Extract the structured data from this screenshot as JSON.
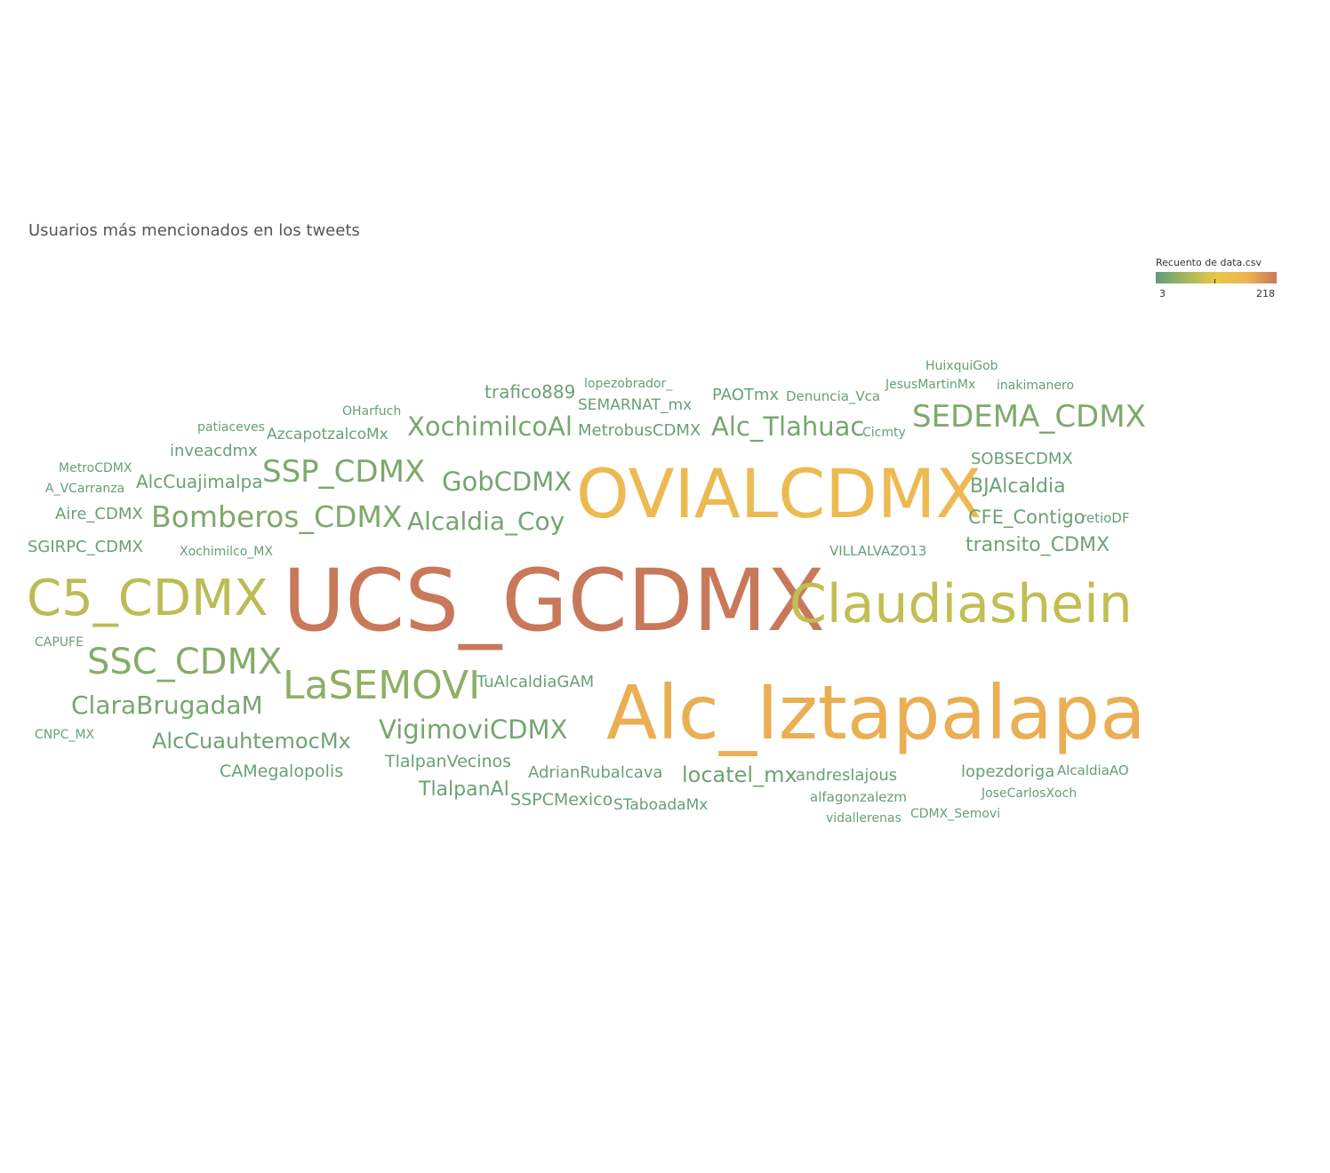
{
  "chart_data": {
    "type": "wordcloud",
    "title": "Usuarios más mencionados en los tweets",
    "legend": {
      "title": "Recuento de data.csv",
      "min": 3,
      "max": 218,
      "min_label": "3",
      "max_label": "218",
      "colors": [
        "#5f9c7c",
        "#a4b75a",
        "#e8c74a",
        "#eeb552",
        "#c9785a"
      ],
      "placement": "top-right"
    },
    "words": [
      {
        "text": "UCS_GCDMX",
        "value": 218
      },
      {
        "text": "Alc_Iztapalapa",
        "value": 170
      },
      {
        "text": "OVIALCDMX",
        "value": 150
      },
      {
        "text": "Claudiashein",
        "value": 80
      },
      {
        "text": "C5_CDMX",
        "value": 75
      },
      {
        "text": "LaSEMOVI",
        "value": 40
      },
      {
        "text": "SSC_CDMX",
        "value": 33
      },
      {
        "text": "SEDEMA_CDMX",
        "value": 28
      },
      {
        "text": "Bomberos_CDMX",
        "value": 28
      },
      {
        "text": "SSP_CDMX",
        "value": 26
      },
      {
        "text": "ClaraBrugadaM",
        "value": 22
      },
      {
        "text": "XochimilcoAl",
        "value": 22
      },
      {
        "text": "Alc_Tlahuac",
        "value": 22
      },
      {
        "text": "GobCDMX",
        "value": 20
      },
      {
        "text": "Alcaldia_Coy",
        "value": 20
      },
      {
        "text": "VigimoviCDMX",
        "value": 20
      },
      {
        "text": "AlcCuauhtemocMx",
        "value": 16
      },
      {
        "text": "locatel_mx",
        "value": 15
      },
      {
        "text": "BJAlcaldia",
        "value": 14
      },
      {
        "text": "transito_CDMX",
        "value": 14
      },
      {
        "text": "trafico889",
        "value": 13
      },
      {
        "text": "TlalpanAl",
        "value": 13
      },
      {
        "text": "CFE_Contigo",
        "value": 13
      },
      {
        "text": "AlcCuajimalpa",
        "value": 12
      },
      {
        "text": "SEMARNAT_mx",
        "value": 11
      },
      {
        "text": "MetrobusCDMX",
        "value": 11
      },
      {
        "text": "AzcapotzalcoMx",
        "value": 11
      },
      {
        "text": "PAOTmx",
        "value": 11
      },
      {
        "text": "TuAlcaldiaGAM",
        "value": 11
      },
      {
        "text": "TlalpanVecinos",
        "value": 11
      },
      {
        "text": "AdrianRubalcava",
        "value": 11
      },
      {
        "text": "andreslajous",
        "value": 11
      },
      {
        "text": "lopezdoriga",
        "value": 11
      },
      {
        "text": "inveacdmx",
        "value": 10
      },
      {
        "text": "SOBSECDMX",
        "value": 10
      },
      {
        "text": "Aire_CDMX",
        "value": 10
      },
      {
        "text": "SGIRPC_CDMX",
        "value": 10
      },
      {
        "text": "CAMegalopolis",
        "value": 10
      },
      {
        "text": "SSPCMexico",
        "value": 10
      },
      {
        "text": "JesusMartinMx",
        "value": 8
      },
      {
        "text": "Denuncia_Vca",
        "value": 8
      },
      {
        "text": "lopezobrador_",
        "value": 8
      },
      {
        "text": "OHarfuch",
        "value": 8
      },
      {
        "text": "patiaceves",
        "value": 8
      },
      {
        "text": "MetroCDMX",
        "value": 8
      },
      {
        "text": "A_VCarranza",
        "value": 8
      },
      {
        "text": "Xochimilco_MX",
        "value": 8
      },
      {
        "text": "VILLALVAZO13",
        "value": 8
      },
      {
        "text": "CAPUFE",
        "value": 8
      },
      {
        "text": "CNPC_MX",
        "value": 8
      },
      {
        "text": "STaboadaMx",
        "value": 9
      },
      {
        "text": "alfagonzalezm",
        "value": 8
      },
      {
        "text": "vidallerenas",
        "value": 8
      },
      {
        "text": "CDMX_Semovi",
        "value": 8
      },
      {
        "text": "JoseCarlosXoch",
        "value": 8
      },
      {
        "text": "AlcaldiaAO",
        "value": 8
      },
      {
        "text": "HuixquiGob",
        "value": 7
      },
      {
        "text": "inakimanero",
        "value": 7
      },
      {
        "text": "Cicmty",
        "value": 7
      },
      {
        "text": "retioDF",
        "value": 7
      }
    ]
  }
}
